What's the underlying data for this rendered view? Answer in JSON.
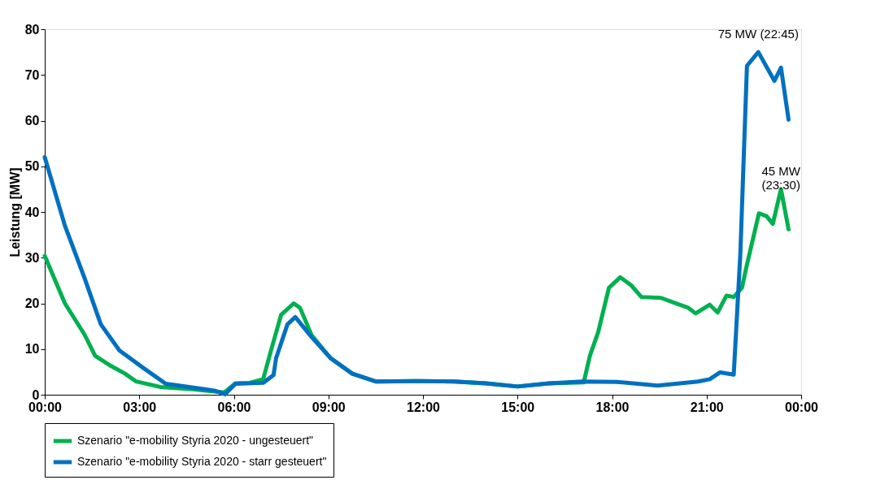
{
  "chart_data": {
    "type": "line",
    "ylabel": "Leistung [MW]",
    "xlim": [
      0,
      24
    ],
    "xticks": [
      {
        "value": 0,
        "label": "00:00"
      },
      {
        "value": 3,
        "label": "03:00"
      },
      {
        "value": 6,
        "label": "06:00"
      },
      {
        "value": 9,
        "label": "09:00"
      },
      {
        "value": 12,
        "label": "12:00"
      },
      {
        "value": 15,
        "label": "15:00"
      },
      {
        "value": 18,
        "label": "18:00"
      },
      {
        "value": 21,
        "label": "21:00"
      },
      {
        "value": 24,
        "label": "00:00"
      }
    ],
    "ylim": [
      0,
      80
    ],
    "yticks": [
      0,
      10,
      20,
      30,
      40,
      50,
      60,
      70,
      80
    ],
    "grid": false,
    "legend": "bottom",
    "marker": "none",
    "line_style": "solid",
    "series": [
      {
        "name": "Szenario \"e-mobility Styria 2020 - ungesteuert\"",
        "color": "#00b050",
        "x": [
          0,
          0.64,
          1.26,
          1.6,
          2.1,
          2.55,
          2.9,
          3.66,
          4.7,
          5.7,
          6.05,
          6.5,
          6.93,
          7.18,
          7.5,
          7.9,
          8.1,
          8.47,
          9.07,
          9.76,
          10.5,
          11.9,
          13,
          14,
          15,
          16,
          17.1,
          17.3,
          17.56,
          17.9,
          18.26,
          18.6,
          18.93,
          19.55,
          20.14,
          20.4,
          20.65,
          21.1,
          21.35,
          21.63,
          21.86,
          22.12,
          22.28,
          22.66,
          22.9,
          23.1,
          23.36,
          23.6
        ],
        "values": [
          30.4,
          20,
          13.2,
          8.5,
          6.3,
          4.6,
          2.9,
          1.7,
          1.2,
          0.5,
          2.5,
          2.6,
          3.4,
          9.7,
          17.5,
          20,
          19,
          13,
          8,
          4.6,
          2.9,
          3,
          2.9,
          2.5,
          1.8,
          2.5,
          2.7,
          8.6,
          13.7,
          23.4,
          25.7,
          24,
          21.4,
          21.2,
          19.7,
          19.1,
          17.8,
          19.7,
          18,
          21.7,
          21.4,
          23.4,
          28.5,
          39.7,
          39.1,
          37.4,
          45,
          36.2
        ]
      },
      {
        "name": "Szenario \"e-mobility Styria 2020 - starr gesteuert\"",
        "color": "#0070c0",
        "x": [
          0,
          0.64,
          1.26,
          1.78,
          2.37,
          3.14,
          3.84,
          5.38,
          5.72,
          6.05,
          6.93,
          7.26,
          7.34,
          7.7,
          7.95,
          8.47,
          9.07,
          9.76,
          10.5,
          11.9,
          13,
          14,
          15,
          16,
          17.05,
          18.16,
          19.44,
          20.73,
          21.1,
          21.43,
          21.86,
          22.07,
          22.28,
          22.64,
          23.15,
          23.36,
          23.6
        ],
        "values": [
          52,
          37,
          25.6,
          15.4,
          9.7,
          5.8,
          2.4,
          0.9,
          0.1,
          2.4,
          2.6,
          4.3,
          8,
          15.4,
          17,
          12.6,
          8,
          4.6,
          2.9,
          3,
          2.9,
          2.5,
          1.8,
          2.5,
          2.9,
          2.8,
          2,
          2.9,
          3.4,
          4.9,
          4.4,
          30.8,
          72,
          75,
          68.7,
          71.6,
          60.2
        ]
      }
    ],
    "annotations": [
      {
        "text": "75 MW (22:45)",
        "x": 22.64,
        "y": 75
      },
      {
        "text": "45 MW\n(23:30)",
        "x": 23.36,
        "y": 45
      }
    ]
  }
}
